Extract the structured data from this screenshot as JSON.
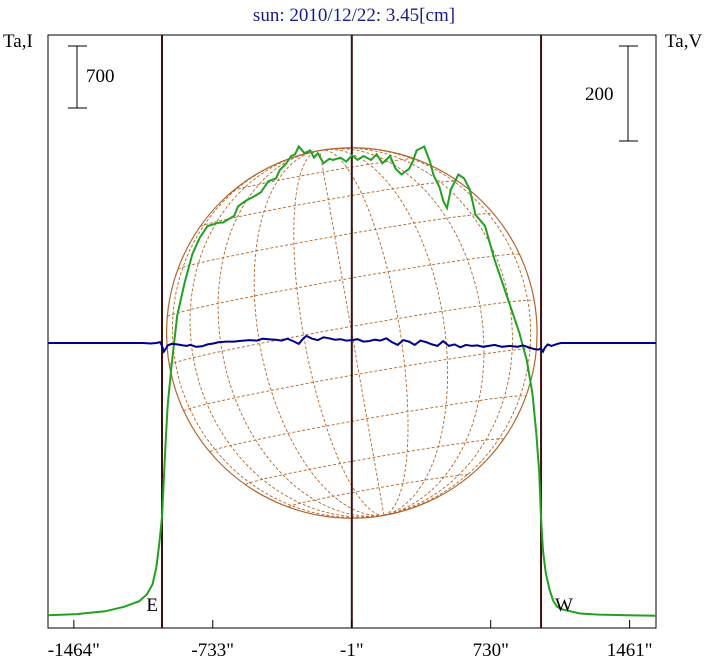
{
  "chart_data": {
    "type": "line",
    "title": "sun: 2010/12/22: 3.45[cm]",
    "ylabel_left": "Ta,I",
    "ylabel_right": "Ta,V",
    "scale_left_label": "700",
    "scale_right_label": "200",
    "x_unit": "arcsec",
    "xlim": [
      -1600,
      1600
    ],
    "x_ticks": [
      {
        "value": -1464,
        "label": "-1464\""
      },
      {
        "value": -733,
        "label": "-733\""
      },
      {
        "value": -1,
        "label": "-1\""
      },
      {
        "value": 730,
        "label": "730\""
      },
      {
        "value": 1461,
        "label": "1461\""
      }
    ],
    "limb_markers": [
      {
        "label": "E",
        "x": -1000
      },
      {
        "label": "W",
        "x": 995
      }
    ],
    "center_line_x": -1,
    "solar_radius_arcsec": 975,
    "series": [
      {
        "name": "Ta,I",
        "color": "#22a022",
        "x": [
          -1600,
          -1450,
          -1300,
          -1200,
          -1120,
          -1080,
          -1050,
          -1030,
          -1015,
          -1000,
          -990,
          -980,
          -970,
          -950,
          -920,
          -880,
          -840,
          -800,
          -760,
          -700,
          -680,
          -650,
          -620,
          -600,
          -560,
          -520,
          -480,
          -440,
          -400,
          -380,
          -350,
          -320,
          -300,
          -280,
          -250,
          -220,
          -200,
          -180,
          -150,
          -120,
          -100,
          -60,
          -30,
          0,
          30,
          60,
          100,
          130,
          160,
          200,
          230,
          260,
          300,
          320,
          340,
          380,
          410,
          430,
          460,
          480,
          500,
          520,
          560,
          590,
          620,
          650,
          700,
          750,
          800,
          850,
          880,
          920,
          950,
          970,
          985,
          995,
          1005,
          1020,
          1040,
          1060,
          1080,
          1110,
          1150,
          1200,
          1300,
          1450,
          1600
        ],
        "y": [
          5,
          7,
          12,
          20,
          30,
          42,
          60,
          90,
          130,
          180,
          250,
          320,
          380,
          450,
          540,
          600,
          650,
          680,
          700,
          706,
          706,
          712,
          718,
          735,
          745,
          752,
          760,
          780,
          785,
          800,
          810,
          825,
          828,
          842,
          830,
          835,
          822,
          830,
          812,
          820,
          818,
          822,
          815,
          826,
          818,
          825,
          818,
          828,
          812,
          825,
          802,
          792,
          802,
          815,
          835,
          842,
          815,
          790,
          770,
          745,
          732,
          765,
          792,
          785,
          765,
          720,
          700,
          640,
          590,
          540,
          510,
          460,
          400,
          330,
          260,
          180,
          120,
          80,
          50,
          30,
          20,
          15,
          12,
          8,
          6,
          5,
          4
        ],
        "ylim": [
          0,
          1050
        ]
      },
      {
        "name": "Ta,V",
        "color": "#00008b",
        "x": [
          -1600,
          -1300,
          -1150,
          -1100,
          -1060,
          -1030,
          -1010,
          -1000,
          -990,
          -980,
          -970,
          -950,
          -920,
          -890,
          -870,
          -850,
          -820,
          -790,
          -760,
          -730,
          -700,
          -660,
          -620,
          -600,
          -570,
          -540,
          -500,
          -470,
          -440,
          -400,
          -370,
          -340,
          -310,
          -280,
          -260,
          -240,
          -210,
          -180,
          -150,
          -120,
          -90,
          -60,
          -30,
          0,
          30,
          60,
          90,
          120,
          150,
          180,
          210,
          240,
          270,
          300,
          330,
          360,
          390,
          420,
          450,
          480,
          510,
          540,
          570,
          600,
          630,
          660,
          690,
          720,
          750,
          790,
          830,
          870,
          900,
          930,
          960,
          980,
          995,
          1005,
          1015,
          1030,
          1050,
          1080,
          1100,
          1300,
          1600
        ],
        "y": [
          0,
          0,
          0,
          0,
          -0.1,
          0,
          0.2,
          -0.6,
          -1.8,
          -1.2,
          -0.5,
          -0.2,
          -0.3,
          -0.5,
          -0.6,
          -0.4,
          -0.8,
          -0.7,
          -0.3,
          -0.1,
          0.2,
          0.3,
          0.3,
          0.4,
          0.5,
          0.6,
          0.5,
          0.9,
          0.8,
          0.7,
          0.5,
          0.9,
          0.4,
          -0.2,
          0.8,
          1.5,
          0.9,
          0.6,
          1.2,
          1.0,
          0.7,
          0.8,
          0.5,
          0.6,
          0.8,
          0.3,
          0.4,
          0.7,
          0.5,
          1.0,
          0.2,
          -0.4,
          0.6,
          0.3,
          -0.4,
          0.5,
          0.2,
          -0.3,
          -0.6,
          0.4,
          -0.6,
          -0.3,
          -0.9,
          -0.4,
          -0.6,
          -0.5,
          -0.8,
          -0.6,
          -0.4,
          -0.8,
          -0.6,
          -0.8,
          -0.5,
          -0.9,
          -1.3,
          -1.4,
          -1.2,
          -1.8,
          -1.0,
          -0.3,
          -0.6,
          -0.2,
          0,
          0,
          0
        ],
        "ylim": [
          -20,
          20
        ]
      }
    ],
    "disk_grid": {
      "latitudes_deg": [
        -60,
        -45,
        -30,
        -15,
        0,
        15,
        30,
        45,
        60
      ],
      "longitudes_deg": [
        -75,
        -60,
        -45,
        -30,
        -15,
        0,
        15,
        30,
        45,
        60,
        75
      ],
      "color": "#b5652a"
    }
  }
}
